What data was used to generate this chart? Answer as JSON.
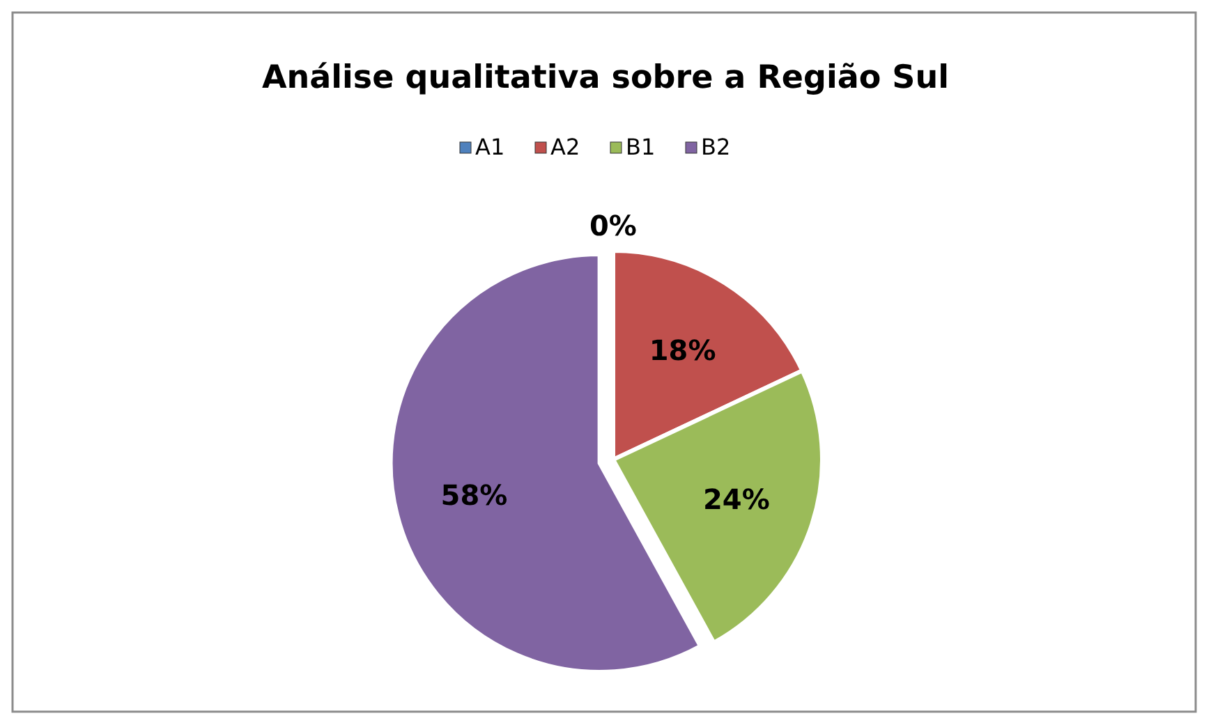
{
  "chart_data": {
    "type": "pie",
    "title": "Análise qualitativa sobre a Região Sul",
    "categories": [
      "A1",
      "A2",
      "B1",
      "B2"
    ],
    "values": [
      0,
      18,
      24,
      58
    ],
    "colors": [
      "#4f81bd",
      "#c0504d",
      "#9bbb59",
      "#8064a2"
    ],
    "value_labels": [
      "0%",
      "18%",
      "24%",
      "58%"
    ],
    "legend": "top"
  }
}
